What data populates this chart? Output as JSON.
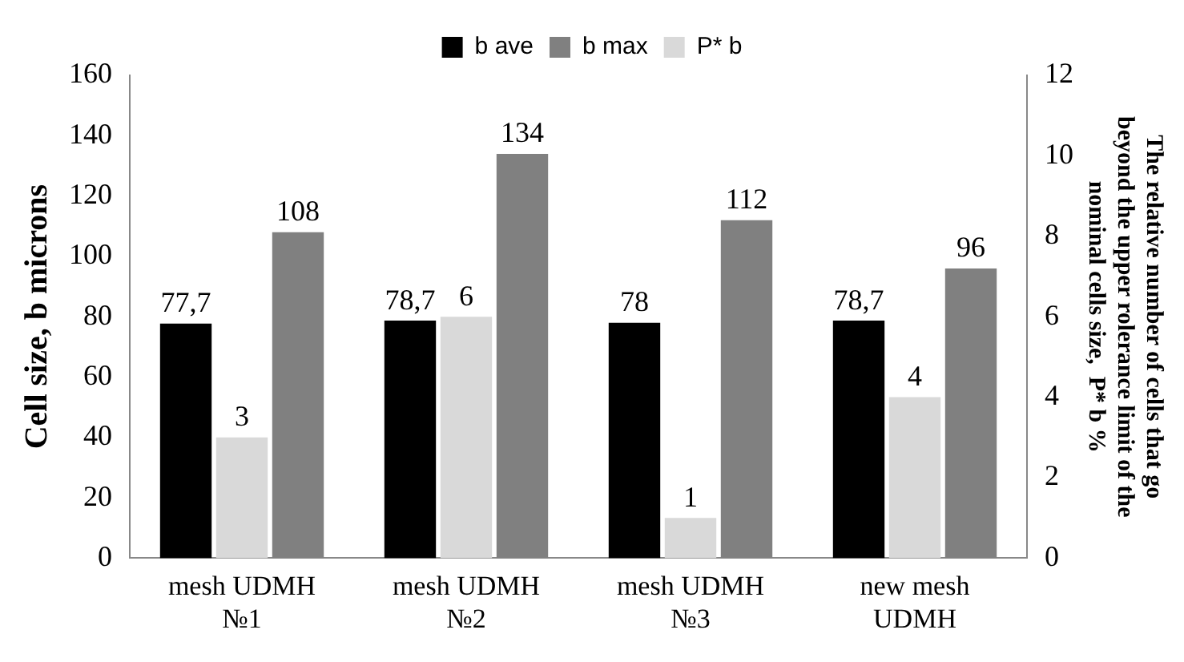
{
  "chart_data": {
    "type": "bar",
    "ylabel": "Cell size, b microns",
    "y2label": "The relative number of cells that go beyond the upper rolerance limit of the nominal cells size,  P* b %",
    "categories": [
      "mesh UDMH №1",
      "mesh UDMH №2",
      "mesh UDMH №3",
      "new mesh UDMH"
    ],
    "series": [
      {
        "name": "b ave",
        "color": "#000000",
        "values": [
          77.7,
          78.7,
          78,
          78.7
        ],
        "value_labels": [
          "77,7",
          "78,7",
          "78",
          "78,7"
        ]
      },
      {
        "name": "P* b",
        "color": "#d9d9d9",
        "values": [
          3,
          6,
          1,
          4
        ],
        "axis": "y2",
        "value_labels": [
          "3",
          "6",
          "1",
          "4"
        ]
      },
      {
        "name": "b max",
        "color": "#808080",
        "values": [
          108,
          134,
          112,
          96
        ],
        "value_labels": [
          "108",
          "134",
          "112",
          "96"
        ]
      }
    ],
    "ylim": [
      0,
      160
    ],
    "yticks": [
      0,
      20,
      40,
      60,
      80,
      100,
      120,
      140,
      160
    ],
    "y2lim": [
      0,
      12
    ],
    "y2ticks": [
      0,
      2,
      4,
      6,
      8,
      10,
      12
    ],
    "legend": "top",
    "grid": false
  }
}
